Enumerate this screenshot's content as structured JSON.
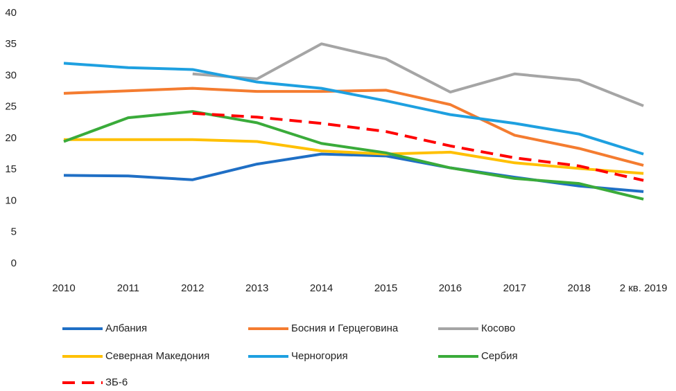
{
  "chart_data": {
    "type": "line",
    "categories": [
      "2010",
      "2011",
      "2012",
      "2013",
      "2014",
      "2015",
      "2016",
      "2017",
      "2018",
      "2 кв. 2019"
    ],
    "series": [
      {
        "name": "Албания",
        "color": "#1f6fc5",
        "values": [
          14.1,
          14.0,
          13.4,
          15.9,
          17.5,
          17.2,
          15.3,
          13.8,
          12.4,
          11.5
        ]
      },
      {
        "name": "Босния и Герцеговина",
        "color": "#f47c30",
        "values": [
          27.2,
          27.6,
          28.0,
          27.5,
          27.5,
          27.7,
          25.4,
          20.5,
          18.4,
          15.7
        ]
      },
      {
        "name": "Косово",
        "color": "#a5a5a5",
        "values": [
          null,
          null,
          30.3,
          29.5,
          35.1,
          32.7,
          27.4,
          30.3,
          29.3,
          25.2
        ]
      },
      {
        "name": "Северная Македония",
        "color": "#ffc000",
        "values": [
          19.8,
          19.8,
          19.8,
          19.5,
          18.0,
          17.5,
          17.8,
          16.1,
          15.2,
          14.4
        ]
      },
      {
        "name": "Черногория",
        "color": "#1ea0e0",
        "values": [
          32.0,
          31.3,
          31.0,
          29.0,
          28.0,
          26.0,
          23.8,
          22.4,
          20.7,
          17.5
        ]
      },
      {
        "name": "Сербия",
        "color": "#3aab3a",
        "values": [
          19.5,
          23.3,
          24.3,
          22.5,
          19.2,
          17.7,
          15.3,
          13.6,
          12.8,
          10.3
        ]
      },
      {
        "name": "ЗБ-6",
        "color": "#ff0000",
        "line_style": "dashed",
        "values": [
          null,
          null,
          24.0,
          23.4,
          22.4,
          21.1,
          18.8,
          16.9,
          15.6,
          13.3
        ]
      }
    ],
    "ylim": [
      0,
      40
    ],
    "yticks": [
      0,
      5,
      10,
      15,
      20,
      25,
      30,
      35,
      40
    ],
    "grid": false,
    "legend": "bottom"
  }
}
